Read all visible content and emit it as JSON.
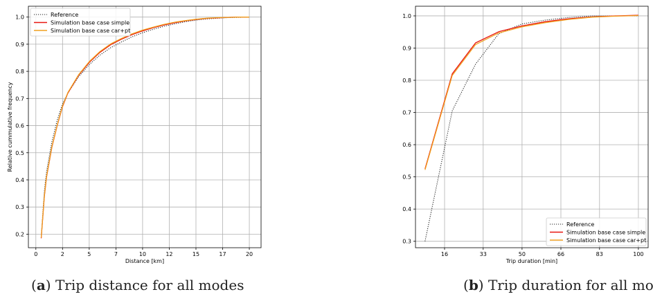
{
  "chart_data": [
    {
      "type": "line",
      "xlabel": "Distance [km]",
      "ylabel": "Relative cummulative frequency",
      "xticks": [
        "0",
        "2",
        "5",
        "7",
        "10",
        "12",
        "15",
        "17",
        "20"
      ],
      "xtick_values": [
        0,
        2.5,
        5,
        7.5,
        10,
        12.5,
        15,
        17.5,
        20
      ],
      "yticks": [
        "0.2",
        "0.3",
        "0.4",
        "0.5",
        "0.6",
        "0.7",
        "0.8",
        "0.9",
        "1.0"
      ],
      "xlim": [
        -0.7,
        21.1
      ],
      "ylim": [
        0.15,
        1.04
      ],
      "grid": true,
      "legend": "top-left",
      "series": [
        {
          "name": "Reference",
          "color": "#222222",
          "style": "dotted",
          "x": [
            0.5,
            0.8,
            1,
            1.5,
            2,
            2.5,
            3,
            4,
            5,
            6,
            7,
            8,
            9,
            10,
            11,
            12,
            13,
            14,
            15,
            16,
            17,
            18,
            19,
            20
          ],
          "y": [
            0.19,
            0.36,
            0.43,
            0.54,
            0.62,
            0.68,
            0.72,
            0.78,
            0.825,
            0.86,
            0.887,
            0.908,
            0.927,
            0.942,
            0.955,
            0.966,
            0.975,
            0.983,
            0.989,
            0.993,
            0.996,
            0.998,
            0.999,
            1.0
          ]
        },
        {
          "name": "Simulation base case simple",
          "color": "#e8150f",
          "style": "solid",
          "x": [
            0.5,
            0.8,
            1,
            1.5,
            2,
            2.5,
            3,
            4,
            5,
            6,
            7,
            8,
            9,
            10,
            11,
            12,
            13,
            14,
            15,
            16,
            17,
            18,
            19,
            20
          ],
          "y": [
            0.185,
            0.34,
            0.41,
            0.52,
            0.6,
            0.67,
            0.72,
            0.785,
            0.833,
            0.87,
            0.898,
            0.918,
            0.935,
            0.949,
            0.961,
            0.971,
            0.979,
            0.986,
            0.991,
            0.995,
            0.997,
            0.999,
            1.0,
            1.0
          ]
        },
        {
          "name": "Simulation base case car+pt",
          "color": "#f0a020",
          "style": "solid",
          "x": [
            0.5,
            0.8,
            1,
            1.5,
            2,
            2.5,
            3,
            4,
            5,
            6,
            7,
            8,
            9,
            10,
            11,
            12,
            13,
            14,
            15,
            16,
            17,
            18,
            19,
            20
          ],
          "y": [
            0.187,
            0.342,
            0.412,
            0.522,
            0.602,
            0.672,
            0.722,
            0.787,
            0.836,
            0.873,
            0.901,
            0.921,
            0.938,
            0.952,
            0.963,
            0.973,
            0.981,
            0.987,
            0.992,
            0.996,
            0.998,
            0.999,
            1.0,
            1.0
          ]
        }
      ]
    },
    {
      "type": "line",
      "xlabel": "Trip duration [min]",
      "ylabel": "",
      "xticks": [
        "16",
        "33",
        "50",
        "66",
        "83",
        "100"
      ],
      "xtick_values": [
        16.7,
        33.3,
        50,
        66.7,
        83.3,
        100
      ],
      "yticks": [
        "0.3",
        "0.4",
        "0.5",
        "0.6",
        "0.7",
        "0.8",
        "0.9",
        "1.0"
      ],
      "xlim": [
        4.2,
        104.2
      ],
      "ylim": [
        0.28,
        1.03
      ],
      "grid": true,
      "legend": "bottom-right",
      "series": [
        {
          "name": "Reference",
          "color": "#222222",
          "style": "dotted",
          "x": [
            8.3,
            20,
            30,
            40,
            50,
            60,
            70,
            80,
            90,
            100
          ],
          "y": [
            0.3,
            0.705,
            0.85,
            0.945,
            0.975,
            0.987,
            0.995,
            1.0,
            1.0,
            1.0
          ]
        },
        {
          "name": "Simulation base case simple",
          "color": "#e8150f",
          "style": "solid",
          "x": [
            8.3,
            20,
            30,
            40,
            50,
            60,
            70,
            80,
            90,
            100
          ],
          "y": [
            0.525,
            0.82,
            0.916,
            0.951,
            0.969,
            0.982,
            0.991,
            0.997,
            1.0,
            1.002
          ]
        },
        {
          "name": "Simulation base case car+pt",
          "color": "#f0a020",
          "style": "solid",
          "x": [
            8.3,
            20,
            30,
            40,
            50,
            60,
            70,
            80,
            90,
            100
          ],
          "y": [
            0.522,
            0.815,
            0.911,
            0.947,
            0.966,
            0.979,
            0.989,
            0.996,
            0.999,
            1.001
          ]
        }
      ]
    }
  ],
  "captions": {
    "a": {
      "letter": "a",
      "text": " Trip distance for all modes"
    },
    "b": {
      "letter": "b",
      "text": " Trip duration for all modes"
    }
  }
}
